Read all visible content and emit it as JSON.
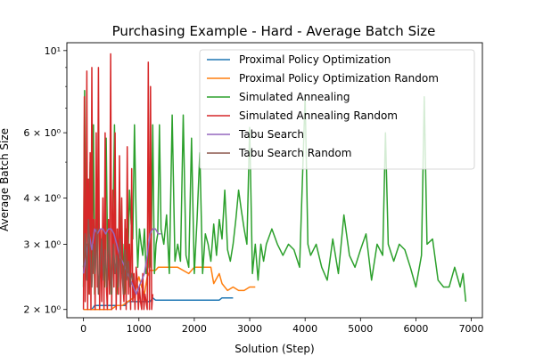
{
  "chart_data": {
    "type": "line",
    "title": "Purchasing Example - Hard - Average Batch Size",
    "xlabel": "Solution (Step)",
    "ylabel": "Average Batch Size",
    "yscale": "log",
    "xlim": [
      -300,
      7200
    ],
    "ylim": [
      1.9,
      10.5
    ],
    "xticks": [
      0,
      1000,
      2000,
      3000,
      4000,
      5000,
      6000,
      7000
    ],
    "xtick_labels": [
      "0",
      "1000",
      "2000",
      "3000",
      "4000",
      "5000",
      "6000",
      "7000"
    ],
    "yticks_major": [
      2,
      3,
      4,
      6,
      10
    ],
    "ytick_labels": [
      "2 × 10⁰",
      "3 × 10⁰",
      "4 × 10⁰",
      "6 × 10⁰",
      "10¹"
    ],
    "yticks_minor": [
      5,
      7,
      8,
      9
    ],
    "grid": false,
    "legend_position": "top-right",
    "series": [
      {
        "name": "Proximal Policy Optimization",
        "color": "#1f77b4",
        "x": [
          0,
          150,
          200,
          500,
          750,
          800,
          1100,
          1200,
          1250,
          1300,
          1900,
          2000,
          2200,
          2250,
          2450,
          2500,
          2700
        ],
        "y": [
          2.0,
          2.0,
          2.05,
          2.05,
          2.05,
          2.1,
          2.1,
          2.1,
          2.15,
          2.12,
          2.12,
          2.12,
          2.12,
          2.12,
          2.12,
          2.15,
          2.15
        ]
      },
      {
        "name": "Proximal Policy Optimization Random",
        "color": "#ff7f0e",
        "x": [
          0,
          100,
          500,
          600,
          700,
          800,
          900,
          950,
          1000,
          1050,
          1100,
          1150,
          1200,
          1300,
          1350,
          1500,
          1600,
          1700,
          1900,
          2000,
          2300,
          2350,
          2450,
          2500,
          2600,
          2700,
          2800,
          2900,
          3000,
          3100
        ],
        "y": [
          2.0,
          2.0,
          2.0,
          2.05,
          2.05,
          2.1,
          2.15,
          2.3,
          2.45,
          2.3,
          2.2,
          2.45,
          2.55,
          2.55,
          2.6,
          2.6,
          2.6,
          2.6,
          2.5,
          2.6,
          2.6,
          2.35,
          2.5,
          2.35,
          2.25,
          2.3,
          2.25,
          2.25,
          2.3,
          2.3
        ]
      },
      {
        "name": "Simulated Annealing",
        "color": "#2ca02c",
        "x": [
          0,
          20,
          40,
          60,
          80,
          100,
          120,
          140,
          160,
          180,
          200,
          230,
          260,
          290,
          320,
          350,
          380,
          410,
          440,
          470,
          500,
          530,
          560,
          590,
          620,
          650,
          680,
          710,
          740,
          770,
          800,
          830,
          860,
          890,
          920,
          950,
          980,
          1010,
          1040,
          1070,
          1100,
          1130,
          1160,
          1190,
          1220,
          1250,
          1280,
          1310,
          1340,
          1370,
          1400,
          1450,
          1500,
          1550,
          1600,
          1650,
          1700,
          1750,
          1800,
          1850,
          1900,
          1950,
          2000,
          2050,
          2100,
          2150,
          2200,
          2250,
          2300,
          2350,
          2400,
          2450,
          2500,
          2550,
          2600,
          2650,
          2700,
          2750,
          2800,
          2850,
          2900,
          2950,
          3000,
          3050,
          3100,
          3150,
          3200,
          3250,
          3300,
          3400,
          3500,
          3600,
          3700,
          3800,
          3900,
          4000,
          4050,
          4100,
          4200,
          4300,
          4400,
          4500,
          4600,
          4700,
          4800,
          4900,
          5000,
          5100,
          5200,
          5300,
          5400,
          5450,
          5500,
          5600,
          5700,
          5800,
          5900,
          6000,
          6100,
          6150,
          6200,
          6300,
          6400,
          6500,
          6600,
          6700,
          6800,
          6850,
          6900
        ],
        "y": [
          2.3,
          7.8,
          2.5,
          3.0,
          2.2,
          3.5,
          5.0,
          2.4,
          3.0,
          6.3,
          2.2,
          3.2,
          4.5,
          2.5,
          2.7,
          3.3,
          2.3,
          5.8,
          2.4,
          3.0,
          2.2,
          3.2,
          6.3,
          2.6,
          2.2,
          4.4,
          2.5,
          3.0,
          2.2,
          3.3,
          2.5,
          4.2,
          3.4,
          3.1,
          6.3,
          3.5,
          2.6,
          3.3,
          3.0,
          2.8,
          3.3,
          2.5,
          2.6,
          3.2,
          2.6,
          6.3,
          2.5,
          3.0,
          3.2,
          6.3,
          3.3,
          3.0,
          3.6,
          2.5,
          6.7,
          2.7,
          3.0,
          2.7,
          6.7,
          2.8,
          2.6,
          5.8,
          2.5,
          3.5,
          5.3,
          2.5,
          3.2,
          3.0,
          2.7,
          3.4,
          2.8,
          3.5,
          3.1,
          4.2,
          2.9,
          2.7,
          3.0,
          3.5,
          4.2,
          3.7,
          3.3,
          3.0,
          6.2,
          2.5,
          3.0,
          2.4,
          3.0,
          2.7,
          3.0,
          3.3,
          3.0,
          2.8,
          3.0,
          2.9,
          2.6,
          7.5,
          3.0,
          2.8,
          3.0,
          2.6,
          2.4,
          3.1,
          2.5,
          3.6,
          2.8,
          2.6,
          2.9,
          3.2,
          2.4,
          3.0,
          2.8,
          6.0,
          3.0,
          2.7,
          3.0,
          2.9,
          2.6,
          2.3,
          2.8,
          7.5,
          3.0,
          3.1,
          2.4,
          2.3,
          2.3,
          2.6,
          2.3,
          2.5,
          2.1
        ]
      },
      {
        "name": "Simulated Annealing Random",
        "color": "#d62728",
        "x": [
          0,
          15,
          30,
          45,
          60,
          75,
          90,
          105,
          120,
          135,
          150,
          170,
          190,
          210,
          230,
          250,
          270,
          290,
          310,
          330,
          350,
          370,
          390,
          410,
          430,
          450,
          470,
          490,
          510,
          530,
          550,
          570,
          590,
          610,
          630,
          650,
          670,
          690,
          710,
          730,
          750,
          770,
          790,
          810,
          830,
          850,
          870,
          890,
          910,
          930,
          950,
          970,
          990,
          1010,
          1030,
          1050,
          1070,
          1090,
          1110,
          1130,
          1150,
          1170,
          1190,
          1210,
          1230,
          1250
        ],
        "y": [
          2.0,
          7.5,
          2.1,
          3.0,
          8.8,
          2.0,
          4.5,
          2.2,
          5.3,
          2.0,
          9.0,
          2.5,
          3.5,
          2.0,
          6.0,
          2.3,
          9.0,
          2.0,
          3.3,
          2.1,
          4.0,
          2.0,
          6.0,
          2.4,
          2.0,
          3.5,
          2.2,
          9.8,
          2.0,
          4.2,
          2.3,
          6.0,
          2.0,
          3.3,
          2.2,
          5.2,
          2.0,
          4.0,
          2.4,
          2.1,
          3.5,
          2.0,
          5.5,
          2.2,
          3.0,
          2.0,
          4.8,
          2.1,
          2.5,
          2.0,
          2.6,
          2.4,
          2.0,
          2.3,
          2.1,
          2.0,
          2.5,
          2.0,
          2.2,
          2.1,
          2.0,
          9.3,
          2.0,
          8.0,
          2.0,
          2.2
        ]
      },
      {
        "name": "Tabu Search",
        "color": "#9467bd",
        "x": [
          0,
          50,
          100,
          150,
          200,
          250,
          300,
          350,
          400,
          450,
          500,
          550,
          600,
          650,
          700,
          750,
          800,
          850,
          900,
          950,
          1000,
          1050,
          1100,
          1150,
          1200,
          1250,
          1300,
          1350,
          1400
        ],
        "y": [
          2.5,
          2.8,
          3.2,
          2.9,
          3.3,
          3.2,
          3.3,
          3.3,
          3.2,
          3.3,
          3.3,
          3.2,
          3.0,
          2.8,
          2.7,
          2.6,
          2.5,
          2.4,
          2.3,
          2.2,
          2.3,
          2.4,
          2.5,
          2.8,
          3.2,
          3.3,
          3.3,
          3.2,
          3.2
        ]
      },
      {
        "name": "Tabu Search Random",
        "color": "#8c564b",
        "x": [
          0,
          30,
          60,
          90,
          120,
          150,
          180,
          210,
          240,
          270,
          300,
          330,
          360,
          390,
          420,
          450,
          480,
          510,
          540,
          570,
          600,
          630,
          660,
          690,
          720,
          750,
          780,
          810,
          840,
          870,
          900
        ],
        "y": [
          2.6,
          3.2,
          2.4,
          3.5,
          2.8,
          2.3,
          3.0,
          2.5,
          3.3,
          2.2,
          2.7,
          3.1,
          2.4,
          2.9,
          2.3,
          3.2,
          2.6,
          2.2,
          3.0,
          2.5,
          2.8,
          2.3,
          3.1,
          2.6,
          2.2,
          2.9,
          2.4,
          2.7,
          2.3,
          2.5,
          2.4
        ]
      }
    ]
  }
}
